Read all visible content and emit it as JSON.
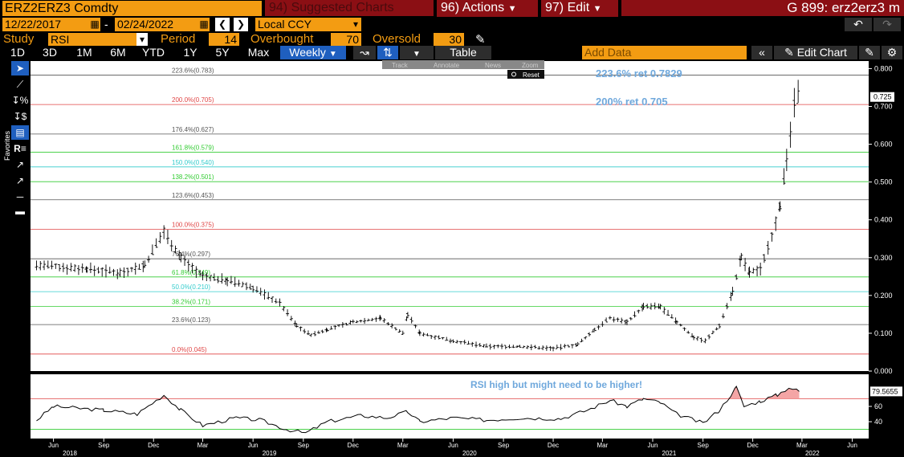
{
  "header": {
    "ticker": "ERZ2ERZ3 Comdty",
    "menu_suggested": "94) Suggested Charts",
    "menu_actions": "96) Actions",
    "menu_edit": "97) Edit",
    "chart_id": "G 899: erz2erz3 m"
  },
  "range": {
    "start_date": "12/22/2017",
    "end_date": "02/24/2022",
    "dash": "-",
    "currency": "Local CCY"
  },
  "study": {
    "label": "Study",
    "name": "RSI",
    "period_label": "Period",
    "period": "14",
    "overbought_label": "Overbought",
    "overbought": "70",
    "oversold_label": "Oversold",
    "oversold": "30"
  },
  "timeframes": [
    "1D",
    "3D",
    "1M",
    "6M",
    "YTD",
    "1Y",
    "5Y",
    "Max"
  ],
  "frequency": "Weekly",
  "table_label": "Table",
  "add_data_placeholder": "Add Data",
  "edit_chart_label": "Edit Chart",
  "toolbox": {
    "track": "Track",
    "annotate": "Annotate",
    "news": "News",
    "zoom": "Zoom",
    "reset": "Reset"
  },
  "favorites_label": "Favorites",
  "colors": {
    "accent_orange": "#f39c12",
    "menu_red": "#8b0f14",
    "fib_red": "#e04646",
    "fib_green": "#33cc33",
    "fib_cyan": "#33cccc",
    "annotation_blue": "#6fa8dc",
    "rsi_fill": "#f4a5a5"
  },
  "chart_data": [
    {
      "type": "line",
      "subtype": "ohlc-bar",
      "frequency": "weekly",
      "ylim": [
        0.0,
        0.82
      ],
      "yticks": [
        "0.000",
        "0.100",
        "0.200",
        "0.300",
        "0.400",
        "0.500",
        "0.600",
        "0.700",
        "0.800"
      ],
      "last_value": "0.725",
      "x_tick_labels": [
        "Jun",
        "Sep",
        "Dec",
        "Mar",
        "Jun",
        "Sep",
        "Dec",
        "Mar",
        "Jun",
        "Sep",
        "Dec",
        "Mar",
        "Jun",
        "Sep",
        "Dec",
        "Mar",
        "Jun"
      ],
      "x_tick_dates": [
        "2018-06-01",
        "2018-09-01",
        "2018-12-01",
        "2019-03-01",
        "2019-06-01",
        "2019-09-01",
        "2019-12-01",
        "2020-03-01",
        "2020-06-01",
        "2020-09-01",
        "2020-12-01",
        "2021-03-01",
        "2021-06-01",
        "2021-09-01",
        "2021-12-01",
        "2022-03-01",
        "2022-06-01"
      ],
      "year_labels": [
        {
          "year": "2018",
          "date": "2018-07-01"
        },
        {
          "year": "2019",
          "date": "2019-07-01"
        },
        {
          "year": "2020",
          "date": "2020-07-01"
        },
        {
          "year": "2021",
          "date": "2021-07-01"
        },
        {
          "year": "2022",
          "date": "2022-03-20"
        }
      ],
      "fib_levels": [
        {
          "label": "0.0%(0.045)",
          "value": 0.045,
          "color": "#e04646"
        },
        {
          "label": "23.6%(0.123)",
          "value": 0.123,
          "color": "#555555"
        },
        {
          "label": "38.2%(0.171)",
          "value": 0.171,
          "color": "#33cc33"
        },
        {
          "label": "50.0%(0.210)",
          "value": 0.21,
          "color": "#33cccc"
        },
        {
          "label": "61.8%(0.249)",
          "value": 0.249,
          "color": "#33cc33"
        },
        {
          "label": "76.4%(0.297)",
          "value": 0.297,
          "color": "#555555"
        },
        {
          "label": "100.0%(0.375)",
          "value": 0.375,
          "color": "#e04646"
        },
        {
          "label": "123.6%(0.453)",
          "value": 0.453,
          "color": "#555555"
        },
        {
          "label": "138.2%(0.501)",
          "value": 0.501,
          "color": "#33cc33"
        },
        {
          "label": "150.0%(0.540)",
          "value": 0.54,
          "color": "#33cccc"
        },
        {
          "label": "161.8%(0.579)",
          "value": 0.579,
          "color": "#33cc33"
        },
        {
          "label": "176.4%(0.627)",
          "value": 0.627,
          "color": "#555555"
        },
        {
          "label": "200.0%(0.705)",
          "value": 0.705,
          "color": "#e04646"
        },
        {
          "label": "223.6%(0.783)",
          "value": 0.783,
          "color": "#555555"
        }
      ],
      "annotations": [
        "223.6% ret 0.7829",
        "200% ret 0.705"
      ],
      "keypoints": [
        [
          "2018-05-01",
          0.28
        ],
        [
          "2018-08-01",
          0.27
        ],
        [
          "2018-10-01",
          0.26
        ],
        [
          "2018-11-15",
          0.28
        ],
        [
          "2018-12-20",
          0.37
        ],
        [
          "2019-01-20",
          0.3
        ],
        [
          "2019-03-01",
          0.25
        ],
        [
          "2019-04-15",
          0.24
        ],
        [
          "2019-06-01",
          0.22
        ],
        [
          "2019-07-20",
          0.18
        ],
        [
          "2019-08-20",
          0.12
        ],
        [
          "2019-09-15",
          0.095
        ],
        [
          "2019-10-15",
          0.11
        ],
        [
          "2019-12-01",
          0.13
        ],
        [
          "2020-01-20",
          0.14
        ],
        [
          "2020-03-01",
          0.1
        ],
        [
          "2020-03-10",
          0.15
        ],
        [
          "2020-04-01",
          0.1
        ],
        [
          "2020-06-01",
          0.08
        ],
        [
          "2020-08-01",
          0.065
        ],
        [
          "2020-10-01",
          0.065
        ],
        [
          "2020-12-01",
          0.06
        ],
        [
          "2021-01-15",
          0.07
        ],
        [
          "2021-02-15",
          0.11
        ],
        [
          "2021-03-15",
          0.14
        ],
        [
          "2021-04-15",
          0.13
        ],
        [
          "2021-05-15",
          0.17
        ],
        [
          "2021-06-15",
          0.17
        ],
        [
          "2021-07-15",
          0.13
        ],
        [
          "2021-08-15",
          0.09
        ],
        [
          "2021-09-05",
          0.08
        ],
        [
          "2021-10-01",
          0.12
        ],
        [
          "2021-10-25",
          0.21
        ],
        [
          "2021-11-10",
          0.3
        ],
        [
          "2021-11-25",
          0.26
        ],
        [
          "2021-12-15",
          0.27
        ],
        [
          "2022-01-05",
          0.36
        ],
        [
          "2022-01-20",
          0.44
        ],
        [
          "2022-02-01",
          0.55
        ],
        [
          "2022-02-08",
          0.63
        ],
        [
          "2022-02-15",
          0.7
        ],
        [
          "2022-02-22",
          0.725
        ]
      ]
    },
    {
      "type": "line",
      "name": "RSI",
      "ylim": [
        18,
        102
      ],
      "yticks": [
        "40",
        "60"
      ],
      "overbought": 70,
      "oversold": 30,
      "last_value": "79.5655",
      "annotation": "RSI high but might need to be higher!",
      "keypoints": [
        [
          "2018-05-01",
          42
        ],
        [
          "2018-06-01",
          60
        ],
        [
          "2018-09-01",
          55
        ],
        [
          "2018-11-01",
          50
        ],
        [
          "2018-12-20",
          75
        ],
        [
          "2019-01-20",
          55
        ],
        [
          "2019-03-01",
          35
        ],
        [
          "2019-05-01",
          45
        ],
        [
          "2019-06-15",
          42
        ],
        [
          "2019-08-01",
          30
        ],
        [
          "2019-09-05",
          25
        ],
        [
          "2019-10-15",
          40
        ],
        [
          "2019-12-15",
          48
        ],
        [
          "2020-02-01",
          45
        ],
        [
          "2020-03-10",
          53
        ],
        [
          "2020-04-01",
          40
        ],
        [
          "2020-06-01",
          45
        ],
        [
          "2020-08-01",
          42
        ],
        [
          "2020-10-01",
          45
        ],
        [
          "2020-12-15",
          44
        ],
        [
          "2021-02-01",
          55
        ],
        [
          "2021-03-15",
          68
        ],
        [
          "2021-04-15",
          60
        ],
        [
          "2021-05-15",
          70
        ],
        [
          "2021-06-15",
          65
        ],
        [
          "2021-07-15",
          50
        ],
        [
          "2021-09-01",
          38
        ],
        [
          "2021-10-01",
          55
        ],
        [
          "2021-11-01",
          85
        ],
        [
          "2021-11-15",
          60
        ],
        [
          "2021-12-15",
          67
        ],
        [
          "2022-01-15",
          75
        ],
        [
          "2022-02-05",
          85
        ],
        [
          "2022-02-24",
          79.5655
        ]
      ]
    }
  ]
}
